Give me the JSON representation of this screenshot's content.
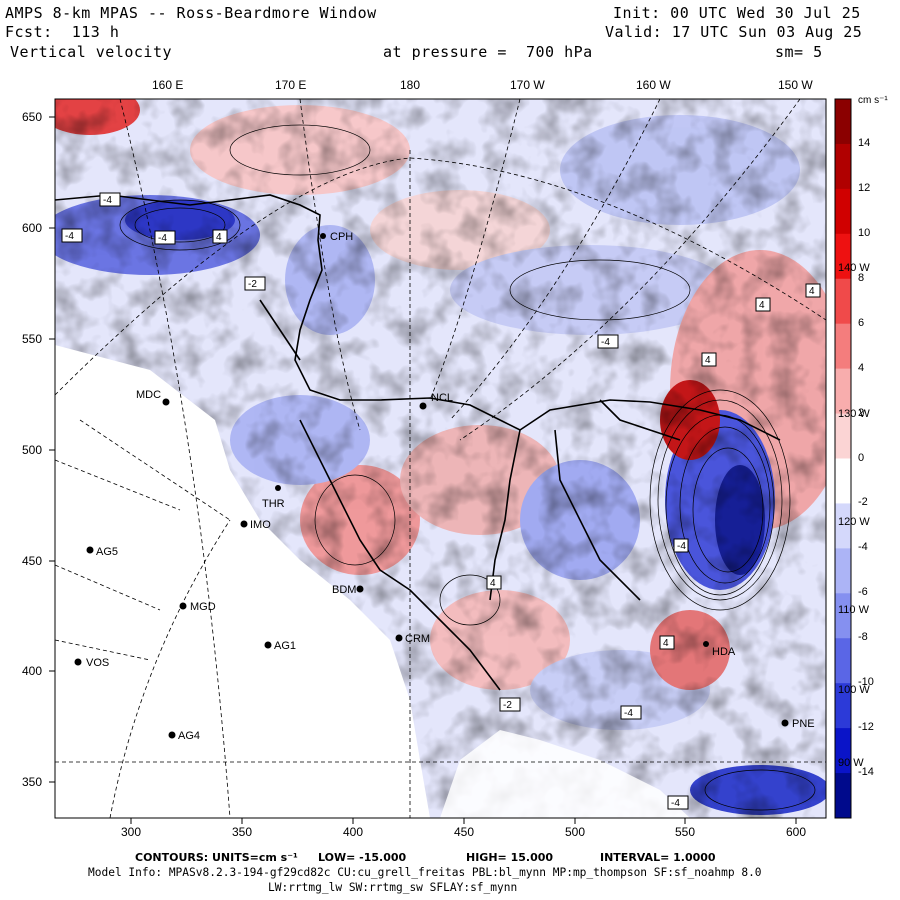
{
  "header": {
    "title": "AMPS 8-km MPAS -- Ross-Beardmore Window",
    "fcst": "Fcst:  113 h",
    "field": "Vertical velocity",
    "init": "Init: 00 UTC Wed 30 Jul 25",
    "valid": "Valid: 17 UTC Sun 03 Aug 25",
    "pressure": "at pressure =  700 hPa",
    "smooth": "sm= 5"
  },
  "axes": {
    "top_labels": [
      "160 E",
      "170 E",
      "180",
      "170 W",
      "160 W",
      "150 W"
    ],
    "left_labels": [
      "650",
      "600",
      "550",
      "500",
      "450",
      "400",
      "350"
    ],
    "bottom_labels": [
      "300",
      "350",
      "400",
      "450",
      "500",
      "550",
      "600"
    ],
    "right_labels": [
      "140 W",
      "130 W",
      "120 W",
      "110 W",
      "100 W",
      "90 W"
    ]
  },
  "colorbar": {
    "units": "cm s⁻¹",
    "labels": [
      "14",
      "12",
      "10",
      "8",
      "6",
      "4",
      "2",
      "0",
      "-2",
      "-4",
      "-6",
      "-8",
      "-10",
      "-12",
      "-14"
    ],
    "colors": [
      "#8b0000",
      "#b00000",
      "#d00000",
      "#ee1111",
      "#f04a4a",
      "#f47d7d",
      "#f8adad",
      "#fbd4d4",
      "#ffffff",
      "#d4d8fb",
      "#acb4f6",
      "#8590f0",
      "#5a66e6",
      "#2c3ad8",
      "#0a14c8",
      "#000a8c"
    ]
  },
  "stations": [
    "MDC",
    "NCL",
    "CPH",
    "IMO",
    "AG5",
    "MGD",
    "AG1",
    "VOS",
    "AG4",
    "BDM",
    "CRM",
    "PNE",
    "THR",
    "HDA"
  ],
  "contour_labels": [
    "-4",
    "-4",
    "-4",
    "4",
    "-2",
    "-4",
    "4",
    "4",
    "4",
    "-4",
    "4",
    "4",
    "-4",
    "-4",
    "-2"
  ],
  "footer": {
    "contours_label": "CONTOURS:",
    "units_label": "UNITS=cm s⁻¹",
    "low": "LOW= -15.000",
    "high": "HIGH= 15.000",
    "interval": "INTERVAL= 1.0000",
    "model_info": "Model Info: MPASv8.2.3-194-gf29cd82c CU:cu_grell_freitas PBL:bl_mynn MP:mp_thompson SF:sf_noahmp 8.0",
    "model_info2": "LW:rrtmg_lw SW:rrtmg_sw SFLAY:sf_mynn"
  }
}
